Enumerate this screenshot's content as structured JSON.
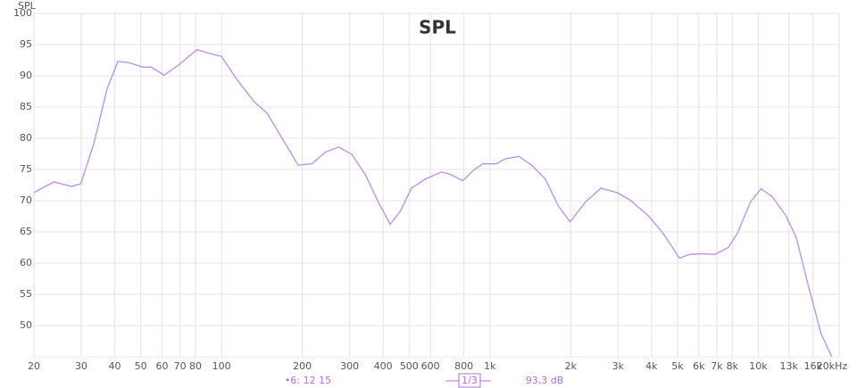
{
  "chart_data": {
    "type": "line",
    "title": "SPL",
    "y_label": "SPL",
    "x_scale": "log",
    "grid": true,
    "xlim": [
      20,
      20000
    ],
    "ylim": [
      45,
      100
    ],
    "yticks": [
      50,
      55,
      60,
      65,
      70,
      75,
      80,
      85,
      90,
      95,
      100
    ],
    "xticks": [
      20,
      30,
      40,
      50,
      60,
      70,
      80,
      100,
      200,
      300,
      400,
      500,
      600,
      800,
      {
        "value": 1000,
        "label": "1k"
      },
      {
        "value": 2000,
        "label": "2k"
      },
      {
        "value": 3000,
        "label": "3k"
      },
      {
        "value": 4000,
        "label": "4k"
      },
      {
        "value": 5000,
        "label": "5k"
      },
      {
        "value": 6000,
        "label": "6k"
      },
      {
        "value": 7000,
        "label": "7k"
      },
      {
        "value": 8000,
        "label": "8k"
      },
      {
        "value": 10000,
        "label": "10k"
      },
      {
        "value": 13000,
        "label": "13k"
      },
      {
        "value": 16000,
        "label": "16k"
      },
      {
        "value": 20000,
        "label": "20kHz"
      }
    ],
    "series": [
      {
        "color": "#c08ae8",
        "x": [
          20,
          23.7,
          27.6,
          29.9,
          33.5,
          37.5,
          41.1,
          45.3,
          50.7,
          54.7,
          61,
          69,
          81.1,
          90,
          100,
          113.7,
          132,
          148,
          172,
          193,
          217,
          244,
          273,
          306,
          343,
          384,
          425,
          465,
          510,
          577,
          660,
          714,
          792,
          870,
          940,
          1055,
          1140,
          1280,
          1430,
          1606,
          1800,
          1990,
          2270,
          2590,
          2970,
          3330,
          3890,
          4430,
          5080,
          5560,
          6150,
          6890,
          7720,
          8340,
          9350,
          10240,
          11300,
          12660,
          13870,
          15290,
          17140,
          18770
        ],
        "values": [
          71.3,
          73.0,
          72.3,
          72.7,
          79.3,
          88.0,
          92.3,
          92.1,
          91.4,
          91.4,
          90.1,
          91.7,
          94.2,
          93.6,
          93.1,
          89.5,
          85.9,
          84.0,
          79.3,
          75.7,
          75.9,
          77.8,
          78.6,
          77.4,
          74.2,
          69.8,
          66.2,
          68.4,
          72.0,
          73.5,
          74.6,
          74.2,
          73.2,
          74.9,
          75.9,
          75.9,
          76.7,
          77.1,
          75.7,
          73.5,
          69.1,
          66.6,
          69.8,
          72.0,
          71.3,
          70.1,
          67.6,
          64.7,
          60.8,
          61.4,
          61.5,
          61.4,
          62.5,
          64.7,
          69.8,
          71.9,
          70.6,
          67.6,
          64.0,
          56.7,
          48.7,
          45.0
        ]
      }
    ]
  },
  "status_bar": {
    "cursor": "•6: 12 15",
    "smoothing": "1/3",
    "level": "93,3 dB"
  }
}
